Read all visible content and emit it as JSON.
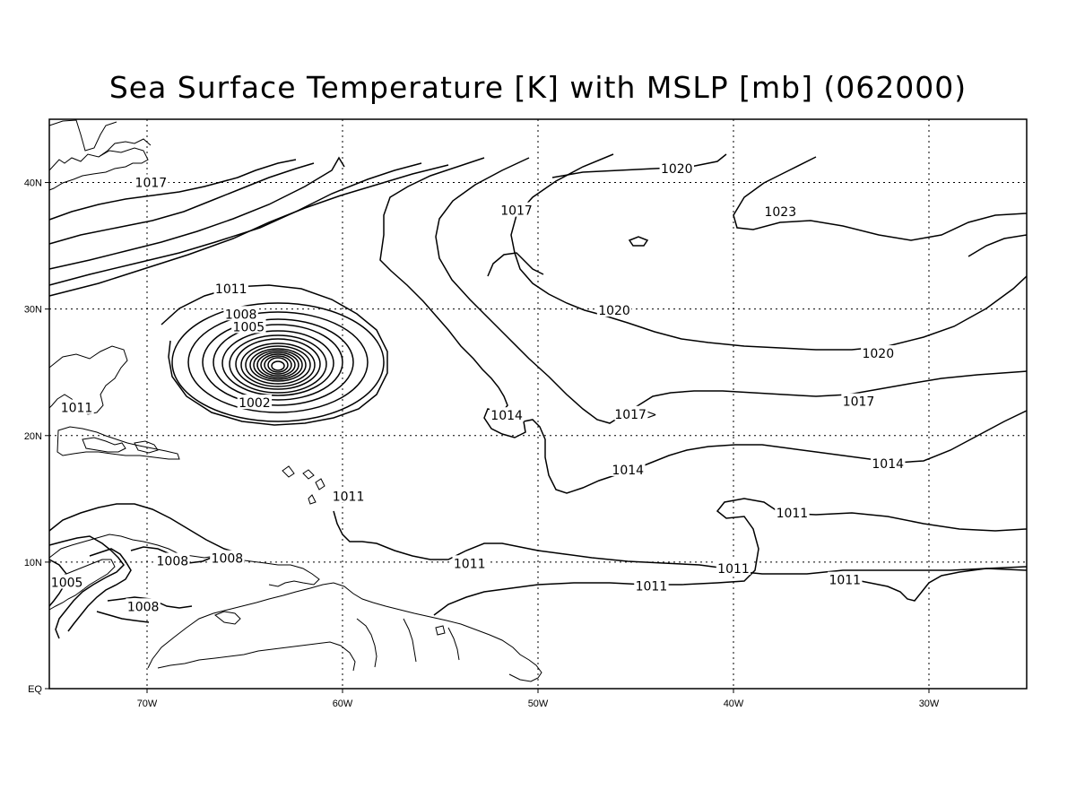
{
  "title": "Sea Surface Temperature [K] with MSLP [mb] (062000)",
  "colors": {
    "line": "#000000",
    "background": "#ffffff"
  },
  "map": {
    "type": "contour-map",
    "lon_range": [
      -75,
      -25
    ],
    "lat_range": [
      0,
      45
    ],
    "grid": "dotted",
    "x_ticks": [
      {
        "lon": -70,
        "label": "70W"
      },
      {
        "lon": -60,
        "label": "60W"
      },
      {
        "lon": -50,
        "label": "50W"
      },
      {
        "lon": -40,
        "label": "40W"
      },
      {
        "lon": -30,
        "label": "30W"
      }
    ],
    "y_ticks": [
      {
        "lat": 0,
        "label": "EQ"
      },
      {
        "lat": 10,
        "label": "10N"
      },
      {
        "lat": 20,
        "label": "20N"
      },
      {
        "lat": 30,
        "label": "30N"
      },
      {
        "lat": 40,
        "label": "40N"
      }
    ],
    "contour_labels": [
      {
        "text": "1017",
        "lon": -69.8,
        "lat": 40.0
      },
      {
        "text": "1017",
        "lon": -51.1,
        "lat": 37.8
      },
      {
        "text": "1020",
        "lon": -42.9,
        "lat": 41.1
      },
      {
        "text": "1023",
        "lon": -37.6,
        "lat": 37.7
      },
      {
        "text": "1020",
        "lon": -46.1,
        "lat": 29.9
      },
      {
        "text": "1020",
        "lon": -32.6,
        "lat": 26.5
      },
      {
        "text": "1017",
        "lon": -33.6,
        "lat": 22.7
      },
      {
        "text": "1017>",
        "lon": -45.0,
        "lat": 21.7
      },
      {
        "text": "1014",
        "lon": -51.6,
        "lat": 21.6
      },
      {
        "text": "1014",
        "lon": -45.4,
        "lat": 17.3
      },
      {
        "text": "1014",
        "lon": -32.1,
        "lat": 17.8
      },
      {
        "text": "1011",
        "lon": -37.0,
        "lat": 13.9
      },
      {
        "text": "1011",
        "lon": -59.7,
        "lat": 15.2
      },
      {
        "text": "1011",
        "lon": -53.5,
        "lat": 9.9
      },
      {
        "text": "1011",
        "lon": -40.0,
        "lat": 9.5
      },
      {
        "text": "1011",
        "lon": -34.3,
        "lat": 8.6
      },
      {
        "text": "1011",
        "lon": -44.2,
        "lat": 8.1
      },
      {
        "text": "1011",
        "lon": -65.7,
        "lat": 31.6
      },
      {
        "text": "1008",
        "lon": -65.2,
        "lat": 29.6
      },
      {
        "text": "1005",
        "lon": -64.8,
        "lat": 28.6
      },
      {
        "text": "1002",
        "lon": -64.5,
        "lat": 22.6
      },
      {
        "text": "1011",
        "lon": -73.6,
        "lat": 22.2
      },
      {
        "text": "1008",
        "lon": -68.7,
        "lat": 10.1
      },
      {
        "text": "1008",
        "lon": -65.9,
        "lat": 10.3
      },
      {
        "text": "1005",
        "lon": -74.1,
        "lat": 8.4
      },
      {
        "text": "1008",
        "lon": -70.2,
        "lat": 6.5
      }
    ],
    "low_center": {
      "lon": -63.4,
      "lat": 25.5
    }
  }
}
